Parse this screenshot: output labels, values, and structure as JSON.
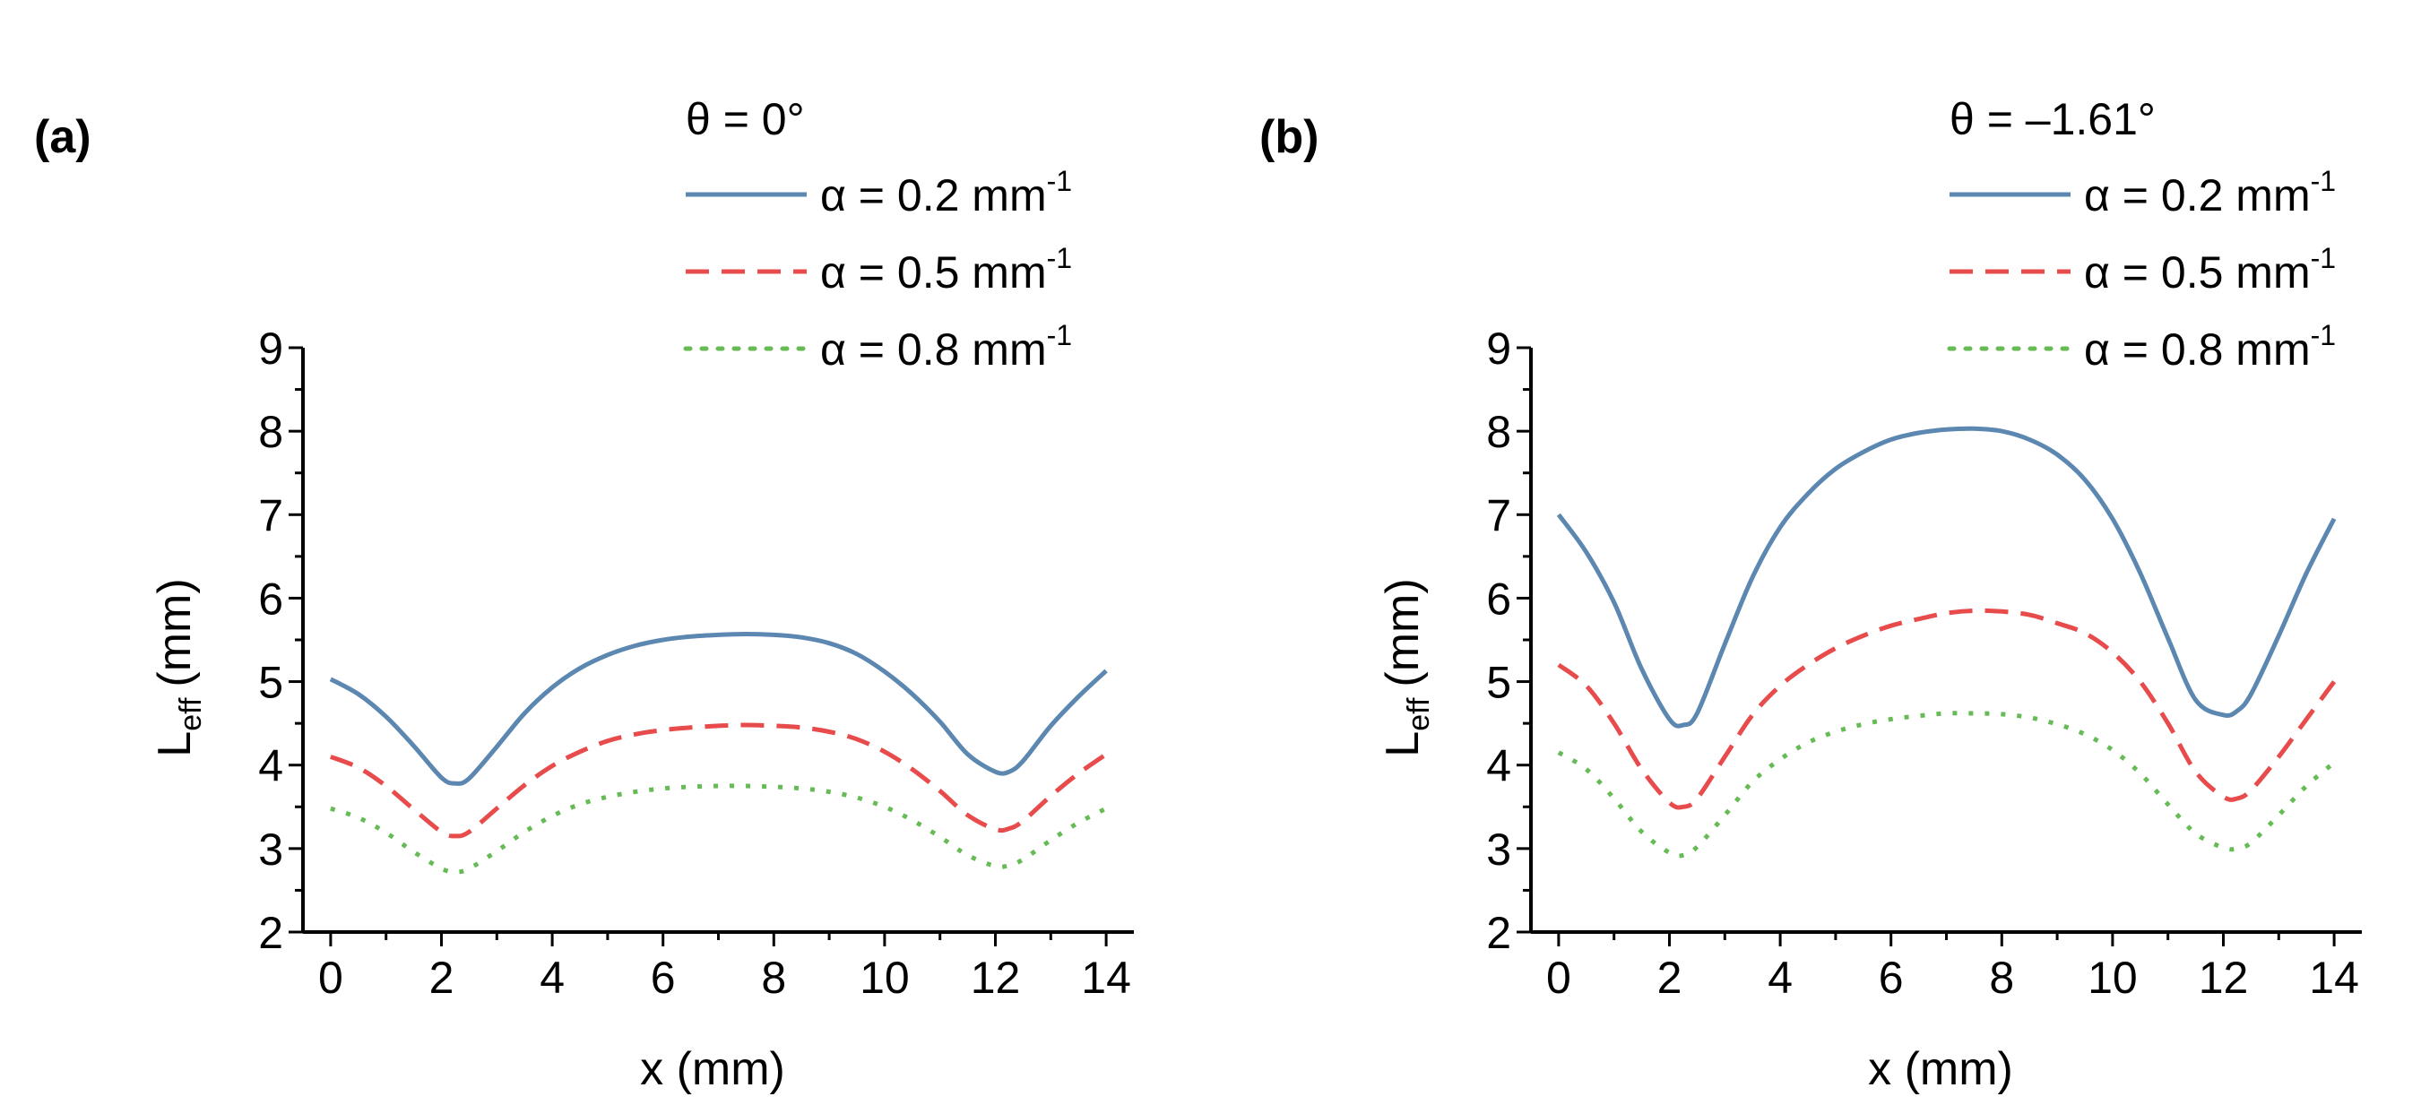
{
  "figure": {
    "panels": [
      {
        "label": "(a)",
        "theta_text": "θ = 0°"
      },
      {
        "label": "(b)",
        "theta_text": "θ = –1.61°"
      }
    ]
  },
  "legend": {
    "entries": [
      {
        "alpha_prefix": "α = 0.2 mm",
        "superscript": "-1",
        "color": "#5b87b0",
        "style": "solid"
      },
      {
        "alpha_prefix": "α = 0.5 mm",
        "superscript": "-1",
        "color": "#e84b4b",
        "style": "dashed"
      },
      {
        "alpha_prefix": "α = 0.8 mm",
        "superscript": "-1",
        "color": "#66bb55",
        "style": "dotted"
      }
    ]
  },
  "chart_data": [
    {
      "type": "line",
      "panel": "(a)",
      "title": "θ = 0°",
      "xlabel": "x (mm)",
      "ylabel_main": "L",
      "ylabel_sub": "eff",
      "ylabel_unit": "(mm)",
      "xlim": [
        -0.5,
        14.5
      ],
      "ylim": [
        2,
        9
      ],
      "xticks": [
        0,
        2,
        4,
        6,
        8,
        10,
        12,
        14
      ],
      "yticks": [
        2,
        3,
        4,
        5,
        6,
        7,
        8,
        9
      ],
      "x": [
        0,
        0.5,
        1,
        1.5,
        2,
        2.25,
        2.5,
        3,
        3.5,
        4,
        4.5,
        5,
        5.5,
        6,
        6.5,
        7,
        7.5,
        8,
        8.5,
        9,
        9.5,
        10,
        10.5,
        11,
        11.5,
        12,
        12.25,
        12.5,
        13,
        13.5,
        14
      ],
      "series": [
        {
          "name": "α = 0.2 mm-1",
          "values": [
            5.03,
            4.85,
            4.58,
            4.23,
            3.85,
            3.78,
            3.84,
            4.22,
            4.62,
            4.93,
            5.16,
            5.32,
            5.43,
            5.5,
            5.54,
            5.56,
            5.57,
            5.56,
            5.53,
            5.46,
            5.33,
            5.12,
            4.85,
            4.52,
            4.13,
            3.92,
            3.92,
            4.05,
            4.47,
            4.82,
            5.13
          ]
        },
        {
          "name": "α = 0.5 mm-1",
          "values": [
            4.1,
            3.97,
            3.75,
            3.47,
            3.2,
            3.15,
            3.2,
            3.48,
            3.76,
            3.99,
            4.16,
            4.29,
            4.37,
            4.42,
            4.45,
            4.47,
            4.48,
            4.47,
            4.45,
            4.4,
            4.31,
            4.16,
            3.95,
            3.69,
            3.4,
            3.23,
            3.24,
            3.33,
            3.63,
            3.9,
            4.13
          ]
        },
        {
          "name": "α = 0.8 mm-1",
          "values": [
            3.48,
            3.37,
            3.19,
            2.96,
            2.76,
            2.72,
            2.76,
            2.97,
            3.2,
            3.39,
            3.53,
            3.62,
            3.68,
            3.72,
            3.74,
            3.75,
            3.75,
            3.74,
            3.72,
            3.68,
            3.61,
            3.5,
            3.34,
            3.14,
            2.92,
            2.79,
            2.8,
            2.87,
            3.1,
            3.31,
            3.48
          ]
        }
      ]
    },
    {
      "type": "line",
      "panel": "(b)",
      "title": "θ = –1.61°",
      "xlabel": "x (mm)",
      "ylabel_main": "L",
      "ylabel_sub": "eff",
      "ylabel_unit": "(mm)",
      "xlim": [
        -0.5,
        14.5
      ],
      "ylim": [
        2,
        9
      ],
      "xticks": [
        0,
        2,
        4,
        6,
        8,
        10,
        12,
        14
      ],
      "yticks": [
        2,
        3,
        4,
        5,
        6,
        7,
        8,
        9
      ],
      "x": [
        0,
        0.5,
        1,
        1.5,
        2,
        2.25,
        2.5,
        3,
        3.5,
        4,
        4.5,
        5,
        5.5,
        6,
        6.5,
        7,
        7.5,
        8,
        8.5,
        9,
        9.5,
        10,
        10.5,
        11,
        11.5,
        12,
        12.25,
        12.5,
        13,
        13.5,
        14
      ],
      "series": [
        {
          "name": "α = 0.2 mm-1",
          "values": [
            7.0,
            6.55,
            5.95,
            5.15,
            4.55,
            4.48,
            4.62,
            5.45,
            6.25,
            6.85,
            7.25,
            7.55,
            7.75,
            7.9,
            7.98,
            8.02,
            8.03,
            8.0,
            7.9,
            7.72,
            7.42,
            6.95,
            6.3,
            5.52,
            4.78,
            4.6,
            4.65,
            4.85,
            5.55,
            6.3,
            6.95
          ]
        },
        {
          "name": "α = 0.5 mm-1",
          "values": [
            5.2,
            4.95,
            4.5,
            3.95,
            3.55,
            3.5,
            3.6,
            4.1,
            4.6,
            4.95,
            5.2,
            5.4,
            5.55,
            5.67,
            5.75,
            5.82,
            5.85,
            5.84,
            5.8,
            5.7,
            5.58,
            5.35,
            5.0,
            4.5,
            3.92,
            3.62,
            3.6,
            3.7,
            4.1,
            4.55,
            5.0
          ]
        },
        {
          "name": "α = 0.8 mm-1",
          "values": [
            4.15,
            3.95,
            3.6,
            3.2,
            2.95,
            2.92,
            3.02,
            3.4,
            3.8,
            4.07,
            4.27,
            4.4,
            4.49,
            4.55,
            4.59,
            4.62,
            4.62,
            4.61,
            4.57,
            4.49,
            4.37,
            4.18,
            3.9,
            3.53,
            3.18,
            3.01,
            3.0,
            3.07,
            3.4,
            3.75,
            4.03
          ]
        }
      ]
    }
  ]
}
